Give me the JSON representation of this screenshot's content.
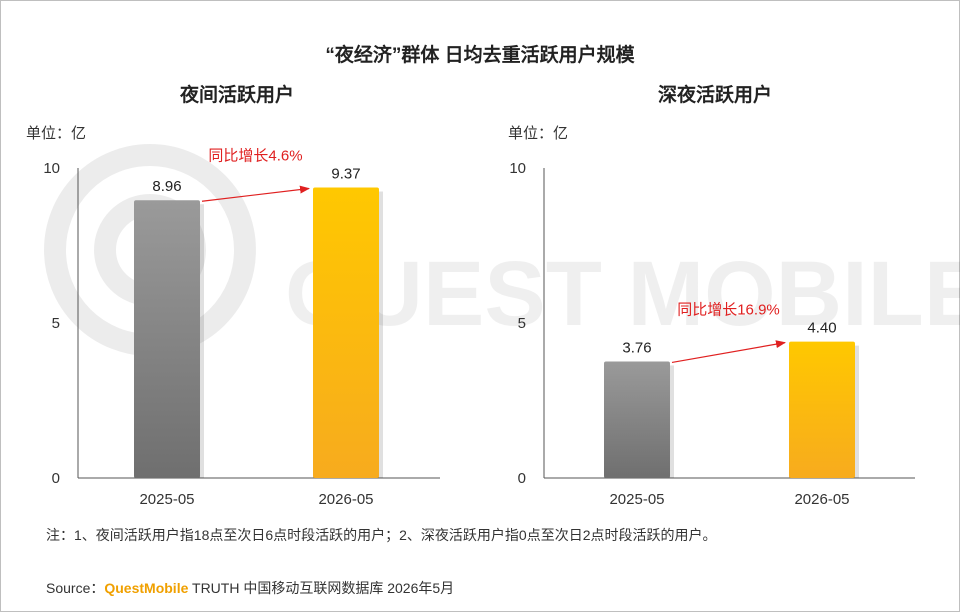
{
  "title": "“夜经济”群体 日均去重活跃用户规模",
  "watermark_text": "QUEST MOBILE",
  "colors": {
    "bar_2025": "#8a8a8a",
    "bar_2026": "#ffc000",
    "growth_arrow": "#e02020",
    "axis": "#555555"
  },
  "chart_data": [
    {
      "type": "bar",
      "title": "夜间活跃用户",
      "unit_label": "单位：亿",
      "categories": [
        "2025-05",
        "2026-05"
      ],
      "values": [
        8.96,
        9.37
      ],
      "value_labels": [
        "8.96",
        "9.37"
      ],
      "ylim": [
        0,
        10
      ],
      "yticks": [
        0,
        5,
        10
      ],
      "ytick_labels": [
        "0",
        "5",
        "10"
      ],
      "annotation": "同比增长4.6%"
    },
    {
      "type": "bar",
      "title": "深夜活跃用户",
      "unit_label": "单位：亿",
      "categories": [
        "2025-05",
        "2026-05"
      ],
      "values": [
        3.76,
        4.4
      ],
      "value_labels": [
        "3.76",
        "4.40"
      ],
      "ylim": [
        0,
        10
      ],
      "yticks": [
        0,
        5,
        10
      ],
      "ytick_labels": [
        "0",
        "5",
        "10"
      ],
      "annotation": "同比增长16.9%"
    }
  ],
  "note": "注：1、夜间活跃用户指18点至次日6点时段活跃的用户；2、深夜活跃用户指0点至次日2点时段活跃的用户。",
  "source": {
    "prefix": "Source：",
    "brand": "QuestMobile",
    "rest": " TRUTH 中国移动互联网数据库 2026年5月"
  }
}
